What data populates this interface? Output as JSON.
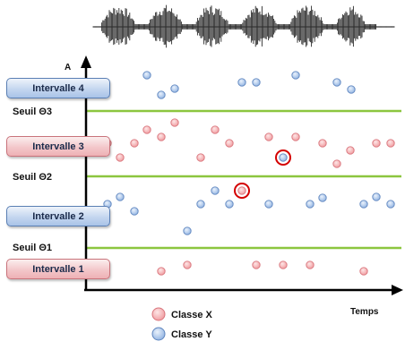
{
  "intervals": [
    {
      "label": "Intervalle 4",
      "class": "blue"
    },
    {
      "label": "Intervalle 3",
      "class": "red"
    },
    {
      "label": "Intervalle 2",
      "class": "blue"
    },
    {
      "label": "Intervalle 1",
      "class": "red"
    }
  ],
  "thresholds": [
    {
      "label": "Seuil Θ3"
    },
    {
      "label": "Seuil Θ2"
    },
    {
      "label": "Seuil Θ1"
    }
  ],
  "axes": {
    "y_label": "A",
    "x_label": "Temps"
  },
  "legend": {
    "class_x": "Classe X",
    "class_y": "Classe Y"
  },
  "colors": {
    "class_x_fill": "#f5b6b8",
    "class_y_fill": "#bcd3ef",
    "threshold_line": "#8cc63f",
    "highlight_ring": "#d40000"
  }
}
